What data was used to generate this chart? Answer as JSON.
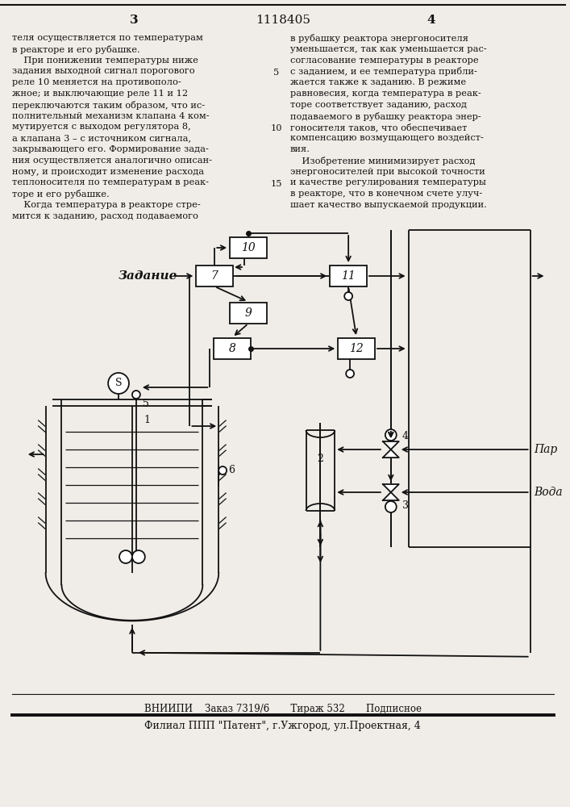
{
  "page_number_left": "3",
  "page_number_right": "4",
  "patent_number": "1118405",
  "text_left": [
    "теля осуществляется по температурам",
    "в реакторе и его рубашке.",
    "    При понижении температуры ниже",
    "задания выходной сигнал порогового",
    "реле 10 меняется на противополо-",
    "жное; и выключающие реле 11 и 12",
    "переключаются таким образом, что ис-",
    "полнительный механизм клапана 4 ком-",
    "мутируется с выходом регулятора 8,",
    "а клапана 3 – с источником сигнала,",
    "закрывающего его. Формирование зада-",
    "ния осуществляется аналогично описан-",
    "ному, и происходит изменение расхода",
    "теплоносителя по температурам в реак-",
    "торе и его рубашке.",
    "    Когда температура в реакторе стре-",
    "мится к заданию, расход подаваемого"
  ],
  "text_right": [
    "в рубашку реактора энергоносителя",
    "уменьшается, так как уменьшается рас-",
    "согласование температуры в реакторе",
    "с заданием, и ее температура прибли-",
    "жается также к заданию. В режиме",
    "равновесия, когда температура в реак-",
    "торе соответствует заданию, расход",
    "подаваемого в рубашку реактора энер-",
    "гоносителя таков, что обеспечивает",
    "компенсацию возмущающего воздейст-",
    "вия.",
    "    Изобретение минимизирует расход",
    "энергоносителей при высокой точности",
    "и качестве регулирования температуры",
    "в реакторе, что в конечном счете улуч-",
    "шает качество выпускаемой продукции."
  ],
  "footer_line1": "ВНИИПИ    Заказ 7319/6       Тираж 532       Подписное",
  "footer_line2": "Филиал ППП \"Патент\", г.Ужгород, ул.Проектная, 4",
  "bg_color": "#f0ede8"
}
